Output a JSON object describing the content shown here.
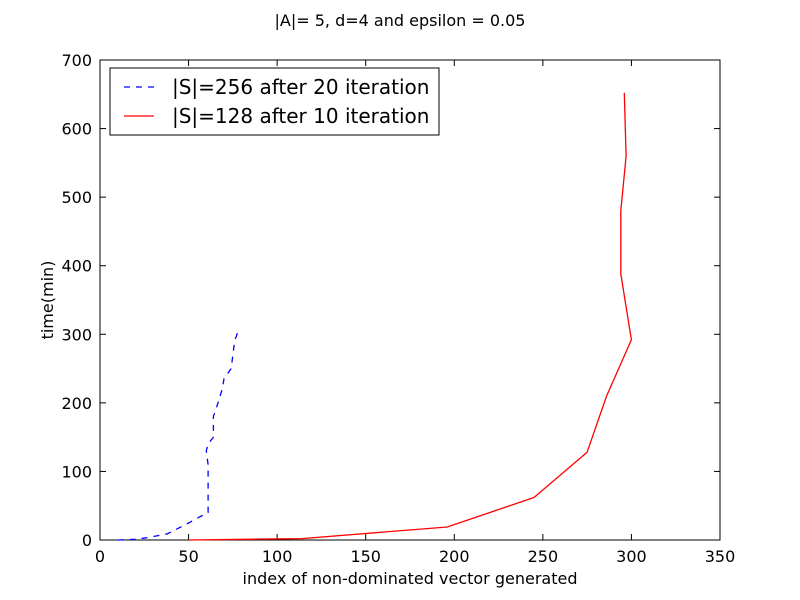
{
  "chart_data": {
    "type": "line",
    "title": "|A|= 5, d=4 and epsilon = 0.05",
    "xlabel": "index of non-dominated vector generated",
    "ylabel": "time(min)",
    "xlim": [
      0,
      350
    ],
    "ylim": [
      0,
      700
    ],
    "x_ticks": [
      "0",
      "50",
      "100",
      "150",
      "200",
      "250",
      "300",
      "350"
    ],
    "y_ticks": [
      "0",
      "100",
      "200",
      "300",
      "400",
      "500",
      "600",
      "700"
    ],
    "grid": false,
    "legend_position": "top-left",
    "series": [
      {
        "name": "|S|=256 after 20 iteration",
        "color": "#0000ff",
        "style": "dashed",
        "points": [
          [
            10,
            0
          ],
          [
            20,
            1
          ],
          [
            28,
            4
          ],
          [
            38,
            9
          ],
          [
            48,
            22
          ],
          [
            55,
            32
          ],
          [
            61,
            40
          ],
          [
            61,
            85
          ],
          [
            61,
            110
          ],
          [
            60,
            130
          ],
          [
            61,
            140
          ],
          [
            64,
            150
          ],
          [
            64,
            180
          ],
          [
            66,
            195
          ],
          [
            69,
            220
          ],
          [
            70,
            235
          ],
          [
            74,
            250
          ],
          [
            75,
            270
          ],
          [
            76,
            290
          ],
          [
            78,
            305
          ]
        ]
      },
      {
        "name": "|S|=128 after 10 iteration",
        "color": "#ff0000",
        "style": "solid",
        "points": [
          [
            50,
            0
          ],
          [
            114,
            2
          ],
          [
            196,
            19
          ],
          [
            245,
            62
          ],
          [
            275,
            128
          ],
          [
            286,
            210
          ],
          [
            300,
            292
          ],
          [
            294,
            388
          ],
          [
            294,
            480
          ],
          [
            297,
            560
          ],
          [
            296,
            652
          ]
        ]
      }
    ]
  }
}
